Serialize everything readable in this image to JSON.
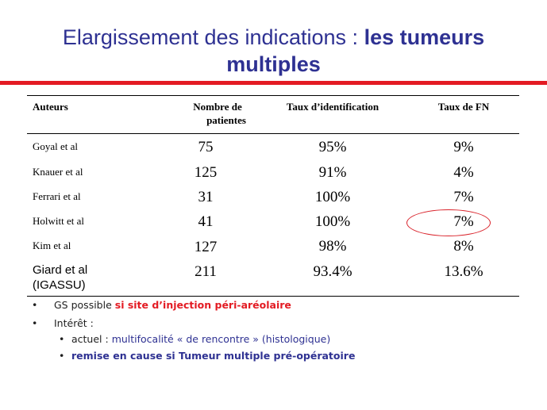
{
  "title": {
    "part1": "Elargissement des indications : ",
    "part2": "les tumeurs",
    "part3": "multiples"
  },
  "table": {
    "headers": {
      "authors": "Auteurs",
      "patients_line1": "Nombre de",
      "patients_line2": "patientes",
      "identification": "Taux d’identification",
      "fn": "Taux de FN"
    },
    "rows": [
      {
        "author": "Goyal et al",
        "patients": "75",
        "identification": "95%",
        "fn": "9%"
      },
      {
        "author": "Knauer et al",
        "patients": "125",
        "identification": "91%",
        "fn": "4%"
      },
      {
        "author": "Ferrari et al",
        "patients": "31",
        "identification": "100%",
        "fn": "7%"
      },
      {
        "author": "Holwitt et al",
        "patients": "41",
        "identification": "100%",
        "fn": "7%"
      },
      {
        "author": "Kim et al",
        "patients": "127",
        "identification": "98%",
        "fn": "8%"
      },
      {
        "author_line1": "Giard et al",
        "author_line2": "(IGASSU)",
        "patients": "211",
        "identification": "93.4%",
        "fn": "13.6%"
      }
    ]
  },
  "bullets": {
    "b1_prefix": "GS possible ",
    "b1_highlight": "si site d’injection péri-aréolaire",
    "b2": "Intérêt :",
    "b3_prefix": "actuel : ",
    "b3_rest": "multifocalité « de rencontre » (histologique)",
    "b4": "remise en cause si Tumeur multiple pré-opératoire"
  },
  "colors": {
    "title": "#2e3192",
    "accent_red": "#e31b23",
    "blue_text": "#2e3192"
  }
}
